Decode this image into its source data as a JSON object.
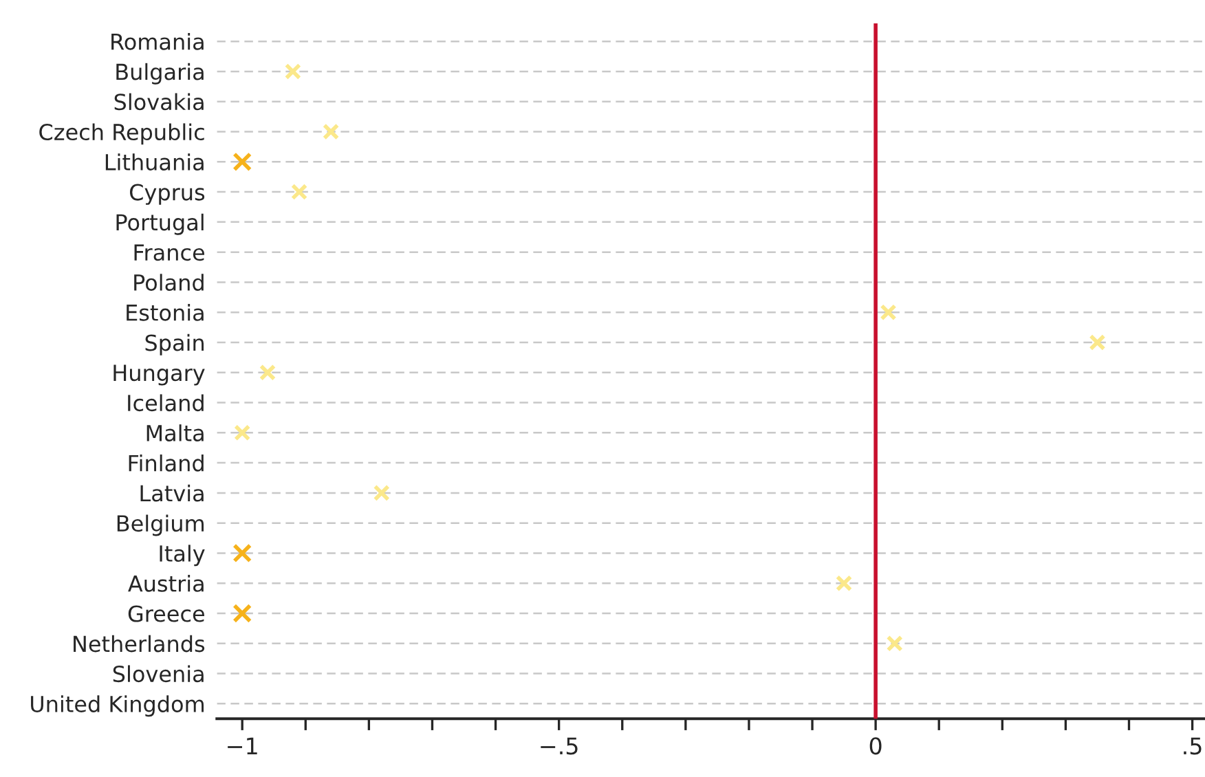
{
  "chart_data": {
    "type": "scatter",
    "orientation": "horizontal",
    "categories": [
      "Romania",
      "Bulgaria",
      "Slovakia",
      "Czech Republic",
      "Lithuania",
      "Cyprus",
      "Portugal",
      "France",
      "Poland",
      "Estonia",
      "Spain",
      "Hungary",
      "Iceland",
      "Malta",
      "Finland",
      "Latvia",
      "Belgium",
      "Italy",
      "Austria",
      "Greece",
      "Netherlands",
      "Slovenia",
      "United Kingdom"
    ],
    "series": [
      {
        "color": "#fbe88a",
        "values": [
          null,
          -0.92,
          null,
          -0.86,
          null,
          -0.91,
          null,
          null,
          null,
          0.02,
          0.35,
          -0.96,
          null,
          -1.0,
          null,
          -0.78,
          null,
          null,
          -0.05,
          null,
          0.03,
          null,
          null
        ]
      },
      {
        "color": "#f6b21b",
        "values": [
          null,
          null,
          null,
          null,
          -1.0,
          null,
          null,
          null,
          null,
          null,
          null,
          null,
          null,
          null,
          null,
          null,
          null,
          -1.0,
          null,
          -1.0,
          null,
          null,
          null
        ]
      }
    ],
    "xlim": [
      -1.04,
      0.52
    ],
    "xticks": [
      {
        "value": -1,
        "label": "−1"
      },
      {
        "value": -0.9,
        "label": null
      },
      {
        "value": -0.8,
        "label": null
      },
      {
        "value": -0.7,
        "label": null
      },
      {
        "value": -0.6,
        "label": null
      },
      {
        "value": -0.5,
        "label": "−.5"
      },
      {
        "value": -0.4,
        "label": null
      },
      {
        "value": -0.3,
        "label": null
      },
      {
        "value": -0.2,
        "label": null
      },
      {
        "value": -0.1,
        "label": null
      },
      0,
      {
        "value": 0.1,
        "label": null
      },
      {
        "value": 0.2,
        "label": null
      },
      {
        "value": 0.3,
        "label": null
      },
      {
        "value": 0.4,
        "label": null
      },
      {
        "value": 0.5,
        "label": ".5"
      }
    ],
    "ref_lines": [
      {
        "axis": "x",
        "value": 0,
        "color": "#c8102e"
      }
    ],
    "grid": "y",
    "marker": "cross"
  }
}
